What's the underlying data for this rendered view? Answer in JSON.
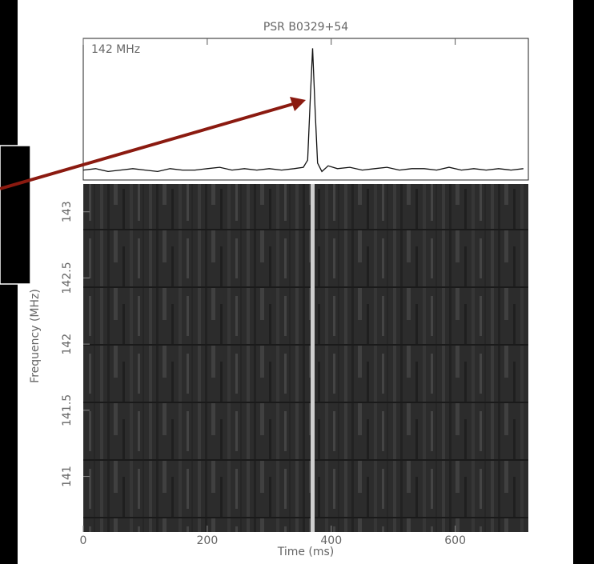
{
  "chart_data": [
    {
      "type": "line",
      "title": "PSR B0329+54",
      "annotation": "142 MHz",
      "color": "#111111",
      "x": [
        0,
        20,
        40,
        60,
        80,
        100,
        120,
        140,
        160,
        180,
        200,
        220,
        240,
        260,
        280,
        300,
        320,
        340,
        355,
        362,
        366,
        370,
        374,
        378,
        385,
        395,
        410,
        430,
        450,
        470,
        490,
        510,
        530,
        550,
        570,
        590,
        610,
        630,
        650,
        670,
        690,
        710
      ],
      "values": [
        7,
        8,
        6,
        7,
        8,
        7,
        6,
        8,
        7,
        7,
        8,
        9,
        7,
        8,
        7,
        8,
        7,
        8,
        9,
        14,
        55,
        93,
        50,
        12,
        6,
        10,
        8,
        9,
        7,
        8,
        9,
        7,
        8,
        8,
        7,
        9,
        7,
        8,
        7,
        8,
        7,
        8
      ],
      "xlim": [
        0,
        718
      ],
      "ylim": [
        0,
        100
      ]
    },
    {
      "type": "image",
      "xlabel": "Time (ms)",
      "ylabel": "Frequency (MHz)",
      "pulse_time": 370,
      "xlim": [
        0,
        718
      ],
      "xticks": [
        0,
        200,
        400,
        600
      ],
      "ylim": [
        140.58,
        143.21
      ],
      "yticks": [
        141,
        141.5,
        142,
        142.5,
        143
      ]
    }
  ]
}
